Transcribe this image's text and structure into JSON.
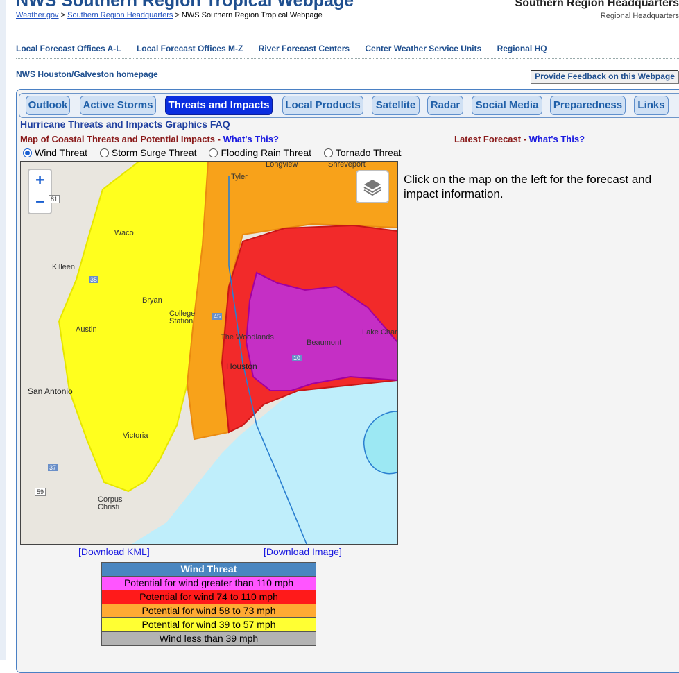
{
  "header": {
    "site_title": "NWS Southern Region Tropical Webpage",
    "crumb_1": "Weather.gov",
    "crumb_sep": " > ",
    "crumb_2": "Southern Region Headquarters",
    "crumb_3": "NWS Southern Region Tropical Webpage",
    "hq_title": "Southern Region Headquarters",
    "hq_subtitle": "Regional Headquarters"
  },
  "topnav": {
    "items": [
      "Local Forecast Offices A-L",
      "Local Forecast Offices M-Z",
      "River Forecast Centers",
      "Center Weather Service Units",
      "Regional HQ"
    ]
  },
  "home_link": "NWS Houston/Galveston homepage",
  "feedback_button": "Provide Feedback on this Webpage",
  "tabs": [
    "Outlook",
    "Active Storms",
    "Threats and Impacts",
    "Local Products",
    "Satellite",
    "Radar",
    "Social Media",
    "Preparedness",
    "Links"
  ],
  "active_tab": "Threats and Impacts",
  "faq_link": "Hurricane Threats and Impacts Graphics FAQ",
  "map_heading": "Map of Coastal Threats and Potential Impacts - ",
  "map_heading_link": "What's This?",
  "forecast_heading": "Latest Forecast - ",
  "forecast_heading_link": "What's This?",
  "threat_options": {
    "selected": "Wind Threat",
    "items": [
      "Wind Threat",
      "Storm Surge Threat",
      "Flooding Rain Threat",
      "Tornado Threat"
    ]
  },
  "map": {
    "zoom_in": "+",
    "zoom_out": "−",
    "labels": {
      "longview": "Longview",
      "shreveport": "Shreveport",
      "tyler": "Tyler",
      "waco": "Waco",
      "killeen": "Killeen",
      "bryan": "Bryan",
      "college": "College",
      "station": "Station",
      "austin": "Austin",
      "woodlands": "The Woodlands",
      "beaumont": "Beaumont",
      "lake_charles": "Lake Char",
      "houston": "Houston",
      "san_antonio": "San Antonio",
      "victoria": "Victoria",
      "corpus": "Corpus",
      "christi": "Christi",
      "i35": "35",
      "i45": "45",
      "i10": "10",
      "i37": "37",
      "us59": "59",
      "us81": "81"
    },
    "colors": {
      "gt110": "#e23de2",
      "74to110": "#f22a2a",
      "58to73": "#f8a21a",
      "39to57": "#ffff1e",
      "lt39": "#b3b3b3",
      "water": "#bfeefb"
    }
  },
  "downloads": {
    "kml": "[Download KML]",
    "image": "[Download Image]"
  },
  "click_info": "Click on the map on the left for the forecast and impact information.",
  "legend": {
    "title": "Wind Threat",
    "rows": [
      {
        "label": "Potential for wind greater than 110 mph",
        "color": "#ff55ff"
      },
      {
        "label": "Potential for wind 74 to 110 mph",
        "color": "#ff1a1a"
      },
      {
        "label": "Potential for wind 58 to 73 mph",
        "color": "#ffaa33"
      },
      {
        "label": "Potential for wind 39 to 57 mph",
        "color": "#ffff33"
      },
      {
        "label": "Wind less than 39 mph",
        "color": "#b3b3b3"
      }
    ]
  }
}
